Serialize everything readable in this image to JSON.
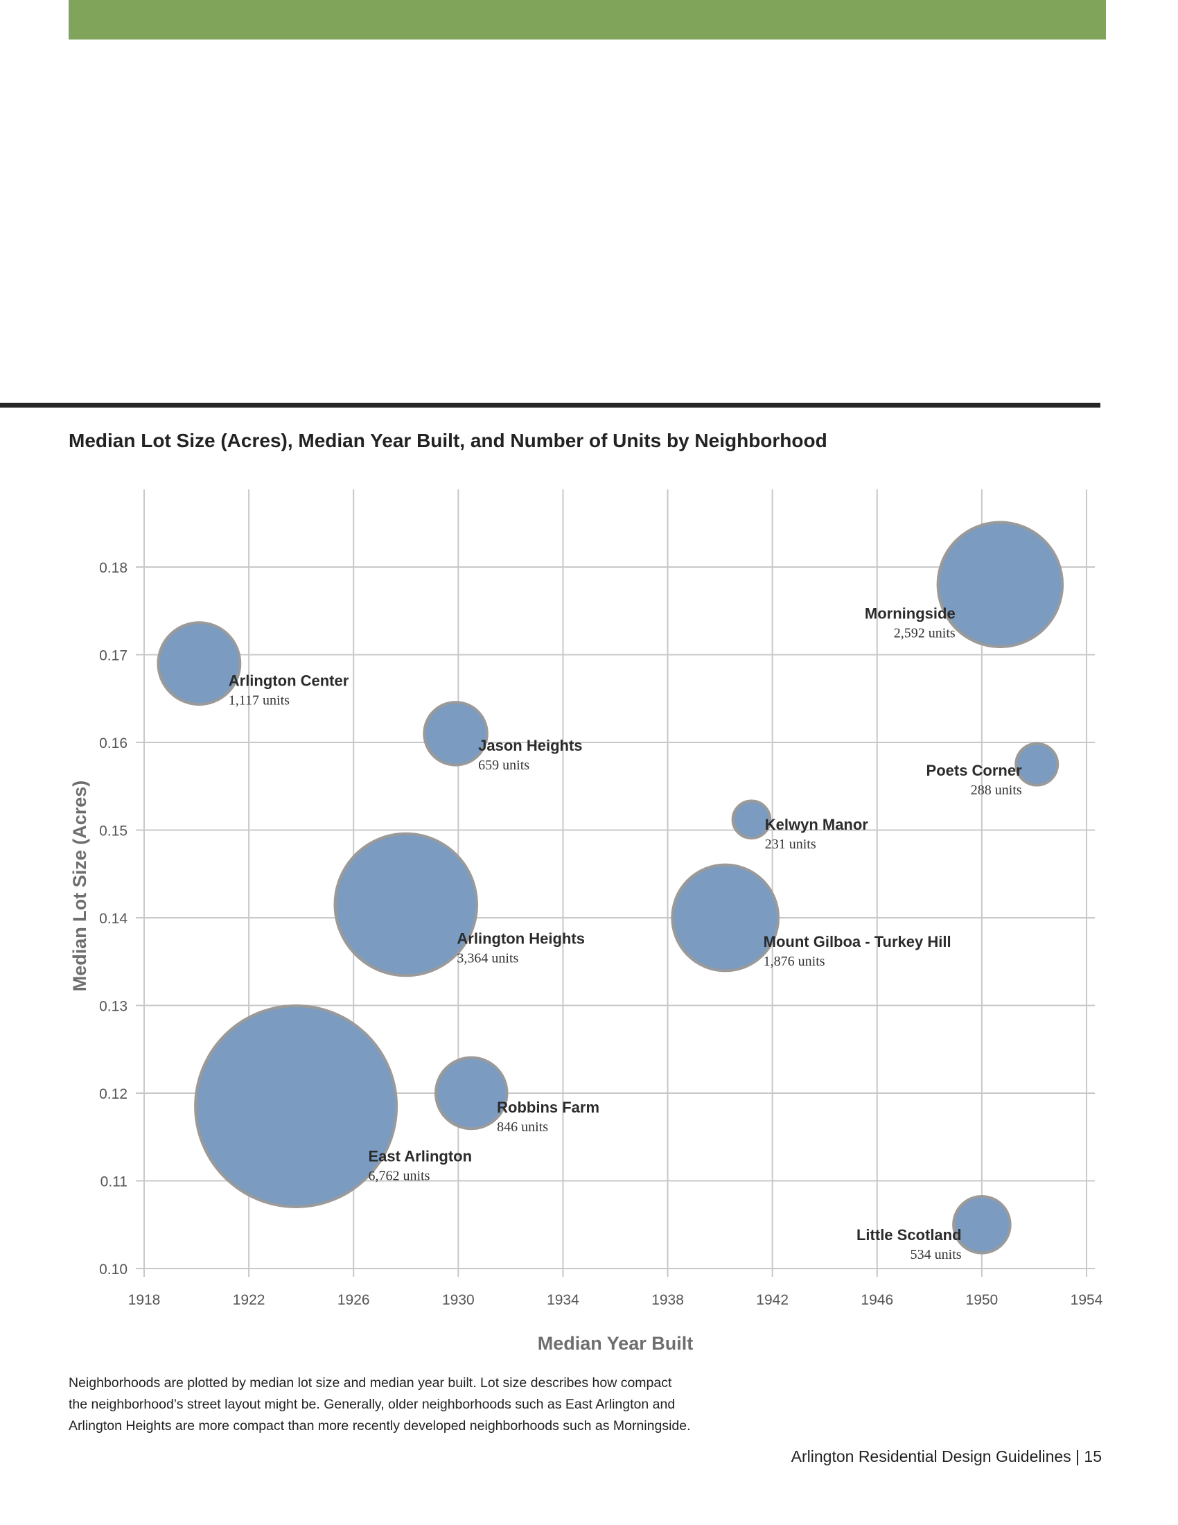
{
  "page": {
    "caption_lines": [
      "Neighborhoods are plotted by median lot size and median year built. Lot size describes how compact",
      "the neighborhood’s street layout might be. Generally, older neighborhoods such as East Arlington and",
      "Arlington Heights are more compact than more recently developed neighborhoods such as Morningside."
    ],
    "footer": "Arlington Residential Design Guidelines | 15",
    "colors": {
      "header_bar": "#7fa45a",
      "divider": "#262626"
    }
  },
  "chart_data": {
    "type": "scatter",
    "title": "Median Lot Size (Acres), Median Year Built, and Number of Units by Neighborhood",
    "xlabel": "Median Year Built",
    "ylabel": "Median Lot Size (Acres)",
    "xlim": [
      1918,
      1954
    ],
    "ylim": [
      0.1,
      0.185
    ],
    "x_ticks": [
      1918,
      1922,
      1926,
      1930,
      1934,
      1938,
      1942,
      1946,
      1950,
      1954
    ],
    "y_ticks": [
      "0.10",
      "0.11",
      "0.12",
      "0.13",
      "0.14",
      "0.15",
      "0.16",
      "0.17",
      "0.18"
    ],
    "grid": true,
    "bubble_color": "#7b9bc0",
    "bubble_stroke": "#9a9a9a",
    "points": [
      {
        "name": "Arlington Center",
        "units_label": "1,117 units",
        "units": 1117,
        "x": 1920.1,
        "y": 0.169,
        "label_side": "right"
      },
      {
        "name": "Jason Heights",
        "units_label": "659 units",
        "units": 659,
        "x": 1929.9,
        "y": 0.161,
        "label_side": "right"
      },
      {
        "name": "Arlington Heights",
        "units_label": "3,364 units",
        "units": 3364,
        "x": 1928.0,
        "y": 0.1415,
        "label_side": "right"
      },
      {
        "name": "East Arlington",
        "units_label": "6,762 units",
        "units": 6762,
        "x": 1923.8,
        "y": 0.1185,
        "label_side": "right"
      },
      {
        "name": "Robbins Farm",
        "units_label": "846 units",
        "units": 846,
        "x": 1930.5,
        "y": 0.12,
        "label_side": "right"
      },
      {
        "name": "Kelwyn Manor",
        "units_label": "231 units",
        "units": 231,
        "x": 1941.2,
        "y": 0.1512,
        "label_side": "right"
      },
      {
        "name": "Mount Gilboa - Turkey Hill",
        "units_label": "1,876 units",
        "units": 1876,
        "x": 1940.2,
        "y": 0.14,
        "label_side": "right"
      },
      {
        "name": "Morningside",
        "units_label": "2,592 units",
        "units": 2592,
        "x": 1950.7,
        "y": 0.178,
        "label_side": "left"
      },
      {
        "name": "Poets Corner",
        "units_label": "288 units",
        "units": 288,
        "x": 1952.1,
        "y": 0.1575,
        "label_side": "left"
      },
      {
        "name": "Little Scotland",
        "units_label": "534 units",
        "units": 534,
        "x": 1950.0,
        "y": 0.105,
        "label_side": "left"
      }
    ]
  }
}
